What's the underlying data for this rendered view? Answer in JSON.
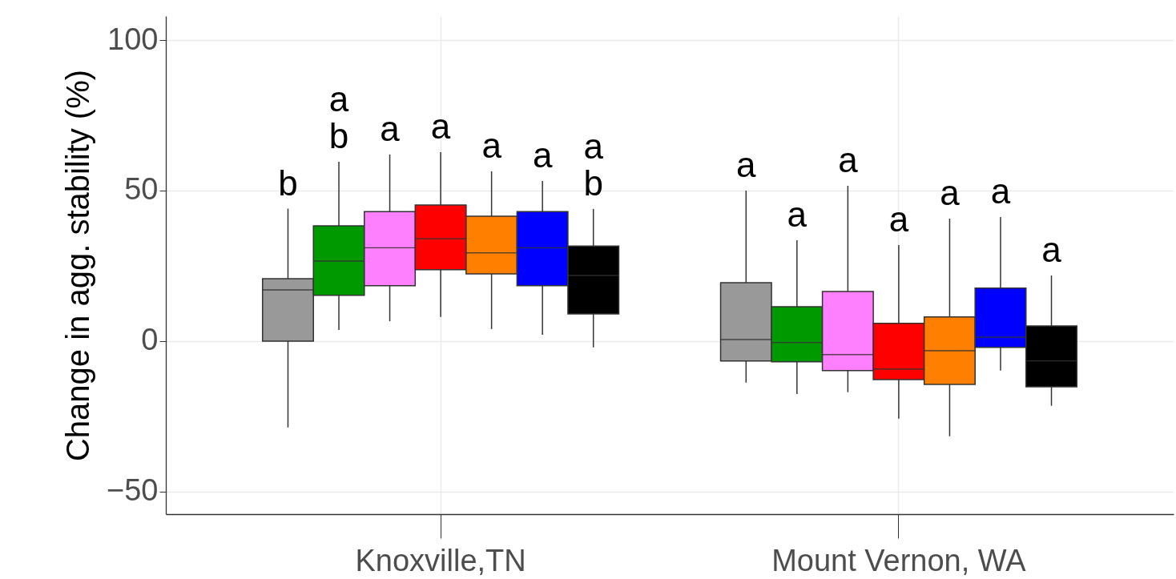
{
  "chart_data": {
    "type": "box",
    "ylabel": "Change in agg. stability (%)",
    "categories": [
      "Knoxville,TN",
      "Mount Vernon, WA"
    ],
    "ylim": [
      -57.5,
      108
    ],
    "yticks": [
      -50,
      0,
      50,
      100
    ],
    "grid": true,
    "series": [
      {
        "color": "#999999",
        "boxes": [
          {
            "low": -28.7,
            "q1": 0,
            "median": 17,
            "q3": 20.7,
            "high": 44
          },
          {
            "low": -13.8,
            "q1": -6.6,
            "median": 0.5,
            "q3": 19.4,
            "high": 50
          }
        ]
      },
      {
        "color": "#009900",
        "boxes": [
          {
            "low": 3.7,
            "q1": 15.2,
            "median": 26.6,
            "q3": 38.3,
            "high": 59.6
          },
          {
            "low": -17.6,
            "q1": -6.9,
            "median": -0.5,
            "q3": 11.4,
            "high": 33.5
          }
        ]
      },
      {
        "color": "#ff80ff",
        "boxes": [
          {
            "low": 6.6,
            "q1": 18.4,
            "median": 31,
            "q3": 43,
            "high": 62
          },
          {
            "low": -17,
            "q1": -9.8,
            "median": -4.5,
            "q3": 16.5,
            "high": 51.6
          }
        ]
      },
      {
        "color": "#ff0000",
        "boxes": [
          {
            "low": 8,
            "q1": 23.7,
            "median": 34,
            "q3": 45.2,
            "high": 62.8
          },
          {
            "low": -25.8,
            "q1": -12.8,
            "median": -9.3,
            "q3": 5.9,
            "high": 31.9
          }
        ]
      },
      {
        "color": "#ff8000",
        "boxes": [
          {
            "low": 4,
            "q1": 22.3,
            "median": 29.3,
            "q3": 41.5,
            "high": 56.4
          },
          {
            "low": -31.6,
            "q1": -14.4,
            "median": -3.2,
            "q3": 8,
            "high": 40.7
          }
        ]
      },
      {
        "color": "#0000ff",
        "boxes": [
          {
            "low": 2.1,
            "q1": 18.4,
            "median": 31,
            "q3": 43,
            "high": 53.2
          },
          {
            "low": -9.8,
            "q1": -2.1,
            "median": 1.3,
            "q3": 17.6,
            "high": 41.2
          }
        ]
      },
      {
        "color": "#000000",
        "boxes": [
          {
            "low": -2.1,
            "q1": 9,
            "median": 21.8,
            "q3": 31.6,
            "high": 43.9
          },
          {
            "low": -21.5,
            "q1": -15.2,
            "median": -6.6,
            "q3": 5,
            "high": 21.8
          }
        ]
      }
    ],
    "annotations": [
      "b",
      "a\nb",
      "a",
      "a",
      "a",
      "a",
      "a\nb",
      "a",
      "a",
      "a",
      "a",
      "a",
      "a",
      "a"
    ]
  }
}
